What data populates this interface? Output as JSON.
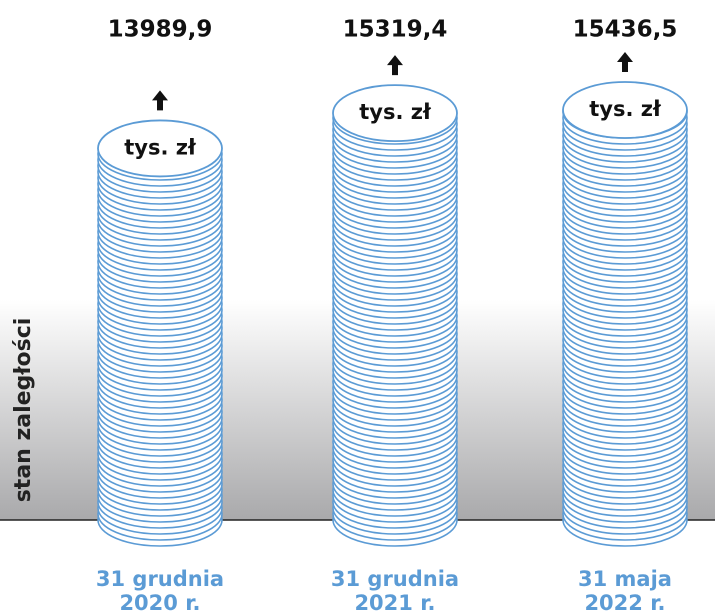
{
  "chart_data": {
    "type": "coin-stack",
    "y_label": "stan zaległości",
    "unit": "tys. zł",
    "categories": [
      [
        "31 grudnia",
        "2020 r."
      ],
      [
        "31 grudnia",
        "2021 r."
      ],
      [
        "31 maja",
        "2022 r."
      ]
    ],
    "values": [
      13989.9,
      15319.4,
      15436.5
    ],
    "value_labels": [
      "13989,9",
      "15319,4",
      "15436,5"
    ],
    "color": "#5b9bd5"
  }
}
